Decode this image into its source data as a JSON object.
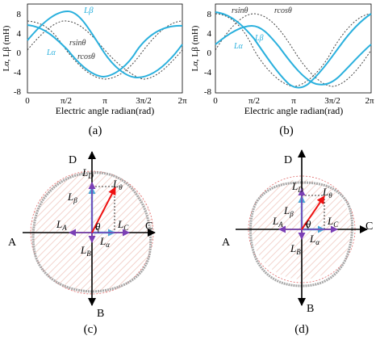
{
  "panels": {
    "a": {
      "caption": "(a)",
      "ylabel": "Lα, Lβ (mH)",
      "xlabel": "Electric angle radian(rad)",
      "xticks": [
        "0",
        "π/2",
        "π",
        "3π/2",
        "2π"
      ],
      "yticks": [
        "8",
        "4",
        "0",
        "-4",
        "-8"
      ],
      "annotations": {
        "l_beta": "Lβ",
        "l_alpha": "Lα",
        "rsin": "rsinθ",
        "rcos": "rcosθ"
      }
    },
    "b": {
      "caption": "(b)",
      "ylabel": "Lα, Lβ (mH)",
      "xlabel": "Electric angle radian(rad)",
      "xticks": [
        "0",
        "π/2",
        "π",
        "3π/2",
        "2π"
      ],
      "yticks": [
        "8",
        "4",
        "0",
        "-4",
        "-8"
      ],
      "annotations": {
        "l_beta": "Lβ",
        "l_alpha": "Lα",
        "rsin": "rsinθ",
        "rcos": "rcosθ"
      }
    },
    "c": {
      "caption": "(c)",
      "axes": {
        "A": "A",
        "B": "B",
        "C": "C",
        "D": "D"
      },
      "labels": {
        "LD": "L",
        "LD_sub": "D",
        "Ltheta": "L",
        "Ltheta_sub": "θ",
        "Lbeta": "L",
        "Lbeta_sub": "β",
        "LA": "L",
        "LA_sub": "A",
        "LC": "L",
        "LC_sub": "C",
        "LB": "L",
        "LB_sub": "B",
        "Lalpha": "L",
        "Lalpha_sub": "α",
        "theta": "θ"
      }
    },
    "d": {
      "caption": "(d)",
      "axes": {
        "A": "A",
        "B": "B",
        "C": "C",
        "D": "D"
      },
      "labels": {
        "LD": "L",
        "LD_sub": "D",
        "Ltheta": "L",
        "Ltheta_sub": "θ",
        "Lbeta": "L",
        "Lbeta_sub": "β",
        "LA": "L",
        "LA_sub": "A",
        "LC": "L",
        "LC_sub": "C",
        "LB": "L",
        "LB_sub": "B",
        "Lalpha": "L",
        "Lalpha_sub": "α",
        "theta": "θ"
      }
    }
  },
  "chart_data": [
    {
      "type": "line",
      "panel": "a",
      "xlabel": "Electric angle radian(rad)",
      "ylabel": "Lα, Lβ (mH)",
      "xlim": [
        0,
        6.2832
      ],
      "ylim": [
        -9,
        9
      ],
      "x": [
        0,
        0.785,
        1.571,
        2.356,
        3.142,
        3.927,
        4.712,
        5.498,
        6.283
      ],
      "series": [
        {
          "name": "Lβ",
          "values": [
            2,
            6.8,
            8.3,
            4.5,
            -1.8,
            -6.2,
            -6.8,
            -2.8,
            2
          ]
        },
        {
          "name": "Lα",
          "values": [
            5.8,
            4.2,
            0,
            -5,
            -6.4,
            -4.5,
            0,
            4.4,
            5.8
          ]
        },
        {
          "name": "rsinθ",
          "values": [
            0,
            4.4,
            6,
            4.4,
            0,
            -4.4,
            -6,
            -4.4,
            0
          ]
        },
        {
          "name": "rcosθ",
          "values": [
            6,
            4.4,
            0,
            -4.4,
            -6,
            -4.4,
            0,
            4.4,
            6
          ]
        }
      ],
      "colors": {
        "measured": "#2ab0dd",
        "ideal": "#444444"
      }
    },
    {
      "type": "line",
      "panel": "b",
      "xlabel": "Electric angle radian(rad)",
      "ylabel": "Lα, Lβ (mH)",
      "xlim": [
        0,
        6.2832
      ],
      "ylim": [
        -9,
        9
      ],
      "x": [
        0,
        0.785,
        1.571,
        2.356,
        3.142,
        3.927,
        4.712,
        5.498,
        6.283
      ],
      "series": [
        {
          "name": "Lβ",
          "values": [
            1.4,
            5,
            5,
            1.5,
            -2.5,
            -6.5,
            -7.6,
            -4.5,
            1.4
          ]
        },
        {
          "name": "Lα",
          "values": [
            7.8,
            6.6,
            2.5,
            -3.5,
            -7.6,
            -6.8,
            -2.5,
            3.2,
            7.8
          ]
        },
        {
          "name": "rsinθ",
          "values": [
            0,
            5.3,
            7.5,
            5.3,
            0,
            -5.3,
            -7.5,
            -5.3,
            0
          ]
        },
        {
          "name": "rcosθ",
          "values": [
            7.5,
            5.3,
            0,
            -5.3,
            -7.5,
            -5.3,
            0,
            5.3,
            7.5
          ]
        }
      ],
      "colors": {
        "measured": "#2ab0dd",
        "ideal": "#444444"
      }
    }
  ]
}
